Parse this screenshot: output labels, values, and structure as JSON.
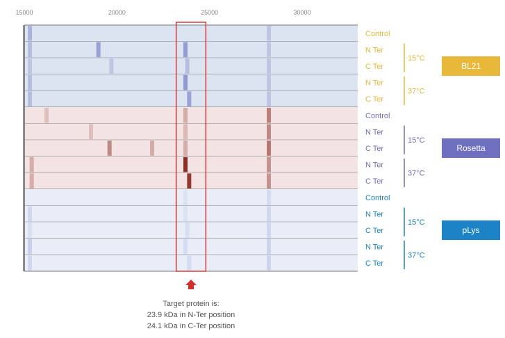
{
  "chart_data": {
    "type": "heatmap",
    "title": "",
    "xlabel": "",
    "ylabel": "",
    "x_ticks": [
      15000,
      20000,
      25000,
      30000
    ],
    "xlim": [
      15000,
      33000
    ],
    "highlight_range": [
      23200,
      24800
    ],
    "rows": [
      {
        "group": "BL21",
        "label": "Control",
        "temp": ""
      },
      {
        "group": "BL21",
        "label": "N Ter",
        "temp": "15°C"
      },
      {
        "group": "BL21",
        "label": "C Ter",
        "temp": "15°C"
      },
      {
        "group": "BL21",
        "label": "N Ter",
        "temp": "37°C"
      },
      {
        "group": "BL21",
        "label": "C Ter",
        "temp": "37°C"
      },
      {
        "group": "Rosetta",
        "label": "Control",
        "temp": ""
      },
      {
        "group": "Rosetta",
        "label": "N Ter",
        "temp": "15°C"
      },
      {
        "group": "Rosetta",
        "label": "C Ter",
        "temp": "15°C"
      },
      {
        "group": "Rosetta",
        "label": "N Ter",
        "temp": "37°C"
      },
      {
        "group": "Rosetta",
        "label": "C Ter",
        "temp": "37°C"
      },
      {
        "group": "pLys",
        "label": "Control",
        "temp": ""
      },
      {
        "group": "pLys",
        "label": "N Ter",
        "temp": "15°C"
      },
      {
        "group": "pLys",
        "label": "C Ter",
        "temp": "15°C"
      },
      {
        "group": "pLys",
        "label": "N Ter",
        "temp": "37°C"
      },
      {
        "group": "pLys",
        "label": "C Ter",
        "temp": "37°C"
      }
    ],
    "groups": [
      {
        "name": "BL21",
        "color": "#E8B83A",
        "base": "#DCE3F1",
        "band": "#7C86C8",
        "temps": [
          "15°C",
          "37°C"
        ]
      },
      {
        "name": "Rosetta",
        "color": "#6F6FBF",
        "base": "#F4E3E3",
        "band": "#8A3028",
        "temps": [
          "15°C",
          "37°C"
        ]
      },
      {
        "name": "pLys",
        "color": "#1C84C6",
        "base": "#E9EDF8",
        "band": "#9AA6D8",
        "temps": [
          "15°C",
          "37°C"
        ]
      }
    ],
    "bands": [
      [
        [
          15300,
          0.5
        ],
        [
          28200,
          0.3
        ]
      ],
      [
        [
          15300,
          0.4
        ],
        [
          19000,
          0.7
        ],
        [
          23700,
          0.75
        ],
        [
          28200,
          0.3
        ]
      ],
      [
        [
          15300,
          0.3
        ],
        [
          19700,
          0.3
        ],
        [
          23800,
          0.4
        ],
        [
          28200,
          0.3
        ]
      ],
      [
        [
          15300,
          0.4
        ],
        [
          23700,
          0.8
        ],
        [
          28200,
          0.3
        ]
      ],
      [
        [
          15300,
          0.4
        ],
        [
          23900,
          0.7
        ],
        [
          28200,
          0.3
        ]
      ],
      [
        [
          16200,
          0.2
        ],
        [
          23700,
          0.3
        ],
        [
          28200,
          0.55
        ]
      ],
      [
        [
          18600,
          0.2
        ],
        [
          23700,
          0.25
        ],
        [
          28200,
          0.5
        ]
      ],
      [
        [
          19600,
          0.5
        ],
        [
          21900,
          0.3
        ],
        [
          23700,
          0.3
        ],
        [
          28200,
          0.6
        ]
      ],
      [
        [
          15400,
          0.3
        ],
        [
          23700,
          1.0
        ],
        [
          28200,
          0.45
        ]
      ],
      [
        [
          15400,
          0.3
        ],
        [
          23900,
          0.95
        ],
        [
          28200,
          0.45
        ]
      ],
      [
        [
          23700,
          0.15
        ],
        [
          28200,
          0.25
        ]
      ],
      [
        [
          15300,
          0.3
        ],
        [
          23700,
          0.15
        ],
        [
          28200,
          0.3
        ]
      ],
      [
        [
          15300,
          0.2
        ],
        [
          23800,
          0.2
        ],
        [
          28200,
          0.3
        ]
      ],
      [
        [
          15300,
          0.4
        ],
        [
          23700,
          0.25
        ],
        [
          28200,
          0.35
        ]
      ],
      [
        [
          15300,
          0.3
        ],
        [
          23900,
          0.25
        ],
        [
          28200,
          0.35
        ]
      ]
    ]
  },
  "annotation": {
    "line1": "Target protein is:",
    "line2": "23.9 kDa in N-Ter position",
    "line3": "24.1 kDa in C-Ter position"
  }
}
